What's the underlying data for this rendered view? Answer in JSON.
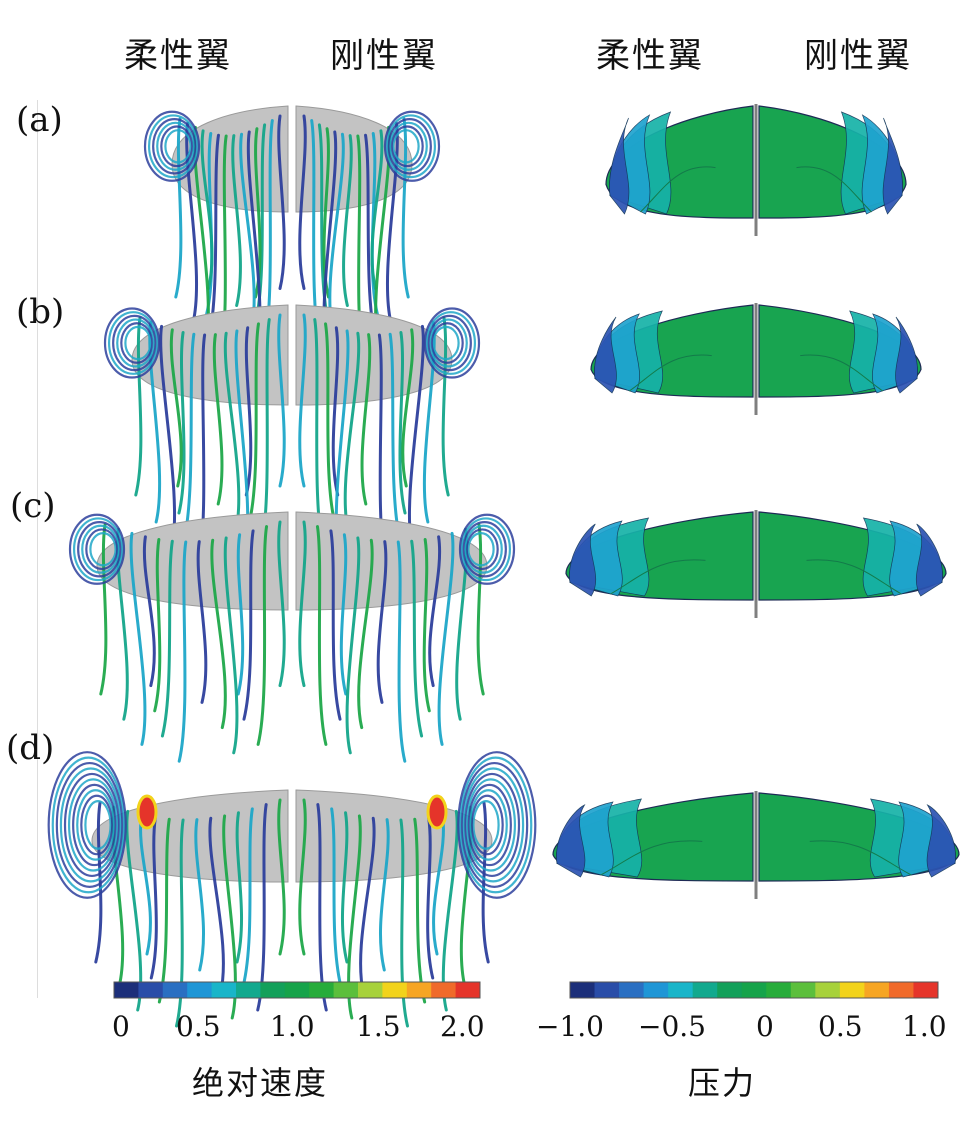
{
  "headers": {
    "stream_flexible": "柔性翼",
    "stream_rigid": "刚性翼",
    "pressure_flexible": "柔性翼",
    "pressure_rigid": "刚性翼"
  },
  "rows": [
    {
      "label": "(a)"
    },
    {
      "label": "(b)"
    },
    {
      "label": "(c)"
    },
    {
      "label": "(d)"
    }
  ],
  "colorbars": {
    "velocity": {
      "title": "绝对速度",
      "ticks": [
        "0",
        "0.5",
        "1.0",
        "1.5",
        "2.0"
      ],
      "range": [
        0,
        2.0
      ],
      "colors": [
        "#1c2f7a",
        "#2a4da8",
        "#2a6fc2",
        "#1f96d6",
        "#19b5c9",
        "#12a98e",
        "#13a05a",
        "#16a34a",
        "#27ac3a",
        "#5cbf3c",
        "#a7d13b",
        "#f2d31b",
        "#f6a523",
        "#f06a2a",
        "#e5342a"
      ]
    },
    "pressure": {
      "title": "压力",
      "ticks": [
        "−1.0",
        "−0.5",
        "0",
        "0.5",
        "1.0"
      ],
      "range": [
        -1.0,
        1.0
      ],
      "colors": [
        "#1c2f7a",
        "#2a4da8",
        "#2a6fc2",
        "#1f96d6",
        "#19b5c9",
        "#12a98e",
        "#13a05a",
        "#16a34a",
        "#27ac3a",
        "#5cbf3c",
        "#a7d13b",
        "#f2d31b",
        "#f6a523",
        "#f06a2a",
        "#e5342a"
      ]
    }
  },
  "palette": {
    "wing_gray": "#c3c3c3",
    "stream_dark_blue": "#2d3f9c",
    "stream_cyan": "#1ea7c8",
    "stream_teal": "#14a58a",
    "stream_green": "#1fa84a",
    "stream_red": "#e5342a",
    "stream_yellow": "#f2d31b",
    "pressure_green": "#18a450",
    "pressure_teal": "#16b2a8",
    "pressure_cyan": "#1fa3cf",
    "pressure_blue": "#2c53b2"
  }
}
